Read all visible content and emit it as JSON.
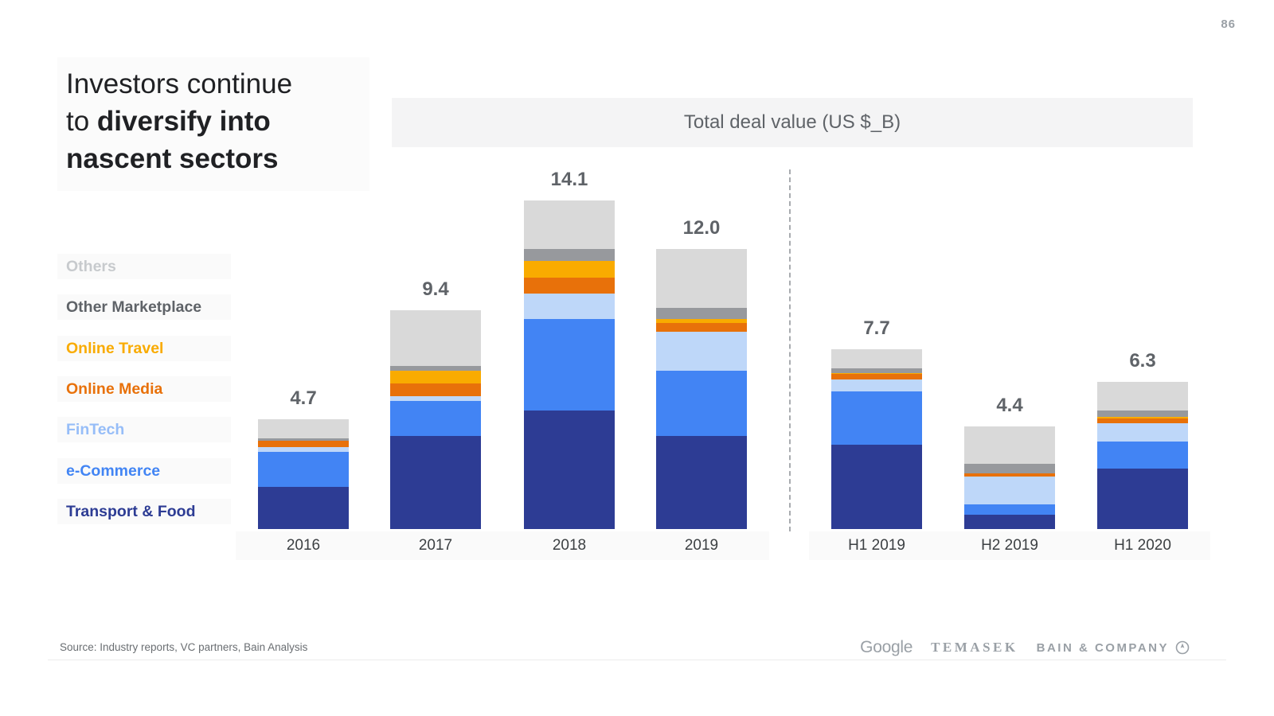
{
  "page_number": "86",
  "title": {
    "line1": "Investors continue",
    "line2_prefix": "to ",
    "line2_bold": "diversify into",
    "line3_bold": "nascent sectors"
  },
  "chart_header": "Total deal value (US $_B)",
  "legend": [
    {
      "label": "Others",
      "color": "#c7cacd"
    },
    {
      "label": "Other Marketplace",
      "color": "#5f6368"
    },
    {
      "label": "Online Travel",
      "color": "#f9ab00"
    },
    {
      "label": "Online Media",
      "color": "#e8710a"
    },
    {
      "label": "FinTech",
      "color": "#96bdf8"
    },
    {
      "label": "e-Commerce",
      "color": "#4285f4"
    },
    {
      "label": "Transport & Food",
      "color": "#2d3c94"
    }
  ],
  "chart_data": {
    "type": "bar",
    "stacked": true,
    "title": "Total deal value (US $_B)",
    "unit": "US $_B",
    "grid": false,
    "legend_position": "left",
    "categories": [
      "2016",
      "2017",
      "2018",
      "2019",
      "H1 2019",
      "H2 2019",
      "H1 2020"
    ],
    "totals": [
      4.7,
      9.4,
      14.1,
      12.0,
      7.7,
      4.4,
      6.3
    ],
    "totals_display": [
      "4.7",
      "9.4",
      "14.1",
      "12.0",
      "7.7",
      "4.4",
      "6.3"
    ],
    "divider_after_category": "2019",
    "series": [
      {
        "name": "Transport & Food",
        "color": "#2d3c94",
        "values": [
          1.8,
          4.0,
          5.1,
          4.0,
          3.6,
          0.6,
          2.6
        ]
      },
      {
        "name": "e-Commerce",
        "color": "#4284f4",
        "values": [
          1.5,
          1.5,
          3.9,
          2.8,
          2.3,
          0.45,
          1.15
        ]
      },
      {
        "name": "FinTech",
        "color": "#bed7f9",
        "values": [
          0.2,
          0.2,
          1.1,
          1.65,
          0.5,
          1.2,
          0.8
        ]
      },
      {
        "name": "Online Media",
        "color": "#e8710a",
        "values": [
          0.3,
          0.55,
          0.7,
          0.4,
          0.25,
          0.15,
          0.2
        ]
      },
      {
        "name": "Online Travel",
        "color": "#f9ab00",
        "values": [
          0,
          0.55,
          0.7,
          0.15,
          0.05,
          0,
          0.05
        ]
      },
      {
        "name": "Other Marketplace",
        "color": "#97999d",
        "values": [
          0.1,
          0.2,
          0.5,
          0.5,
          0.2,
          0.4,
          0.3
        ]
      },
      {
        "name": "Others",
        "color": "#d9d9d9",
        "values": [
          0.8,
          2.4,
          2.1,
          2.5,
          0.8,
          1.6,
          1.2
        ]
      }
    ]
  },
  "footer": {
    "source": "Source: Industry reports, VC partners, Bain Analysis",
    "logos": {
      "google": "Google",
      "temasek": "TEMASEK",
      "bain": "BAIN & COMPANY"
    }
  }
}
